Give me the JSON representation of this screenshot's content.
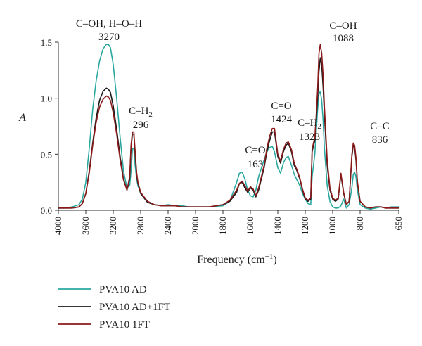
{
  "chart_data": {
    "type": "line",
    "xlabel_main": "Frequency (cm",
    "xlabel_sup": "−1",
    "xlabel_end": ")",
    "ylabel": "A",
    "xlim": [
      4000,
      650
    ],
    "ylim": [
      0,
      1.5
    ],
    "x_reversed": true,
    "grid": false,
    "legend_position": "below",
    "xticks": [
      4000,
      3600,
      3200,
      2800,
      2400,
      2000,
      1800,
      1600,
      1400,
      1200,
      1000,
      800,
      650
    ],
    "yticks": [
      0.0,
      0.5,
      1.0,
      1.5
    ],
    "ytick_labels": [
      "0.0",
      "0.5",
      "1.0",
      "1.5"
    ],
    "annotations": [
      {
        "line1": "C–OH, H–O–H",
        "line2": "3270",
        "x": 3270
      },
      {
        "line1": "C–H",
        "sub": "2",
        "line2": "296",
        "x": 2880
      },
      {
        "line1": "C=O",
        "line2": "163",
        "x": 1650
      },
      {
        "line1": "C=O",
        "line2": "1424",
        "x": 1424
      },
      {
        "line1": "C–H",
        "sub": "2",
        "line2": "1323",
        "x": 1323
      },
      {
        "line1": "C–OH",
        "line2": "1088",
        "x": 1088
      },
      {
        "line1": "C–C",
        "line2": "836",
        "x": 836
      }
    ],
    "series": [
      {
        "name": "PVA10 AD",
        "color": "#2aa8a0",
        "x": [
          4000,
          3900,
          3800,
          3700,
          3650,
          3600,
          3550,
          3500,
          3450,
          3400,
          3350,
          3300,
          3270,
          3240,
          3200,
          3150,
          3100,
          3050,
          3000,
          2960,
          2940,
          2920,
          2900,
          2880,
          2860,
          2840,
          2800,
          2700,
          2600,
          2500,
          2400,
          2300,
          2200,
          2100,
          2000,
          1900,
          1800,
          1750,
          1700,
          1680,
          1660,
          1640,
          1620,
          1600,
          1580,
          1560,
          1540,
          1500,
          1480,
          1460,
          1440,
          1424,
          1400,
          1380,
          1360,
          1340,
          1323,
          1300,
          1280,
          1260,
          1240,
          1220,
          1200,
          1180,
          1160,
          1150,
          1140,
          1130,
          1120,
          1110,
          1100,
          1090,
          1080,
          1070,
          1060,
          1040,
          1020,
          1000,
          980,
          960,
          940,
          920,
          900,
          880,
          860,
          850,
          840,
          830,
          820,
          800,
          780,
          760,
          740,
          720,
          700,
          680,
          650
        ],
        "y": [
          0.02,
          0.02,
          0.03,
          0.05,
          0.1,
          0.25,
          0.55,
          0.9,
          1.15,
          1.33,
          1.44,
          1.48,
          1.48,
          1.45,
          1.3,
          1.0,
          0.65,
          0.35,
          0.2,
          0.22,
          0.35,
          0.55,
          0.55,
          0.4,
          0.28,
          0.22,
          0.15,
          0.07,
          0.05,
          0.04,
          0.05,
          0.04,
          0.04,
          0.03,
          0.03,
          0.03,
          0.04,
          0.08,
          0.25,
          0.33,
          0.34,
          0.28,
          0.18,
          0.13,
          0.12,
          0.18,
          0.3,
          0.45,
          0.52,
          0.56,
          0.57,
          0.52,
          0.38,
          0.33,
          0.42,
          0.47,
          0.48,
          0.4,
          0.32,
          0.27,
          0.22,
          0.15,
          0.1,
          0.06,
          0.05,
          0.3,
          0.4,
          0.5,
          0.7,
          0.9,
          1.04,
          1.06,
          0.98,
          0.8,
          0.55,
          0.22,
          0.08,
          0.03,
          0.02,
          0.02,
          0.04,
          0.1,
          0.02,
          0.05,
          0.2,
          0.32,
          0.34,
          0.3,
          0.18,
          0.05,
          0.02,
          0.01,
          0.02,
          0.03,
          0.02,
          0.03,
          0.03
        ]
      },
      {
        "name": "PVA10 AD+1FT",
        "color": "#1a1a1a",
        "x": [
          4000,
          3900,
          3800,
          3700,
          3650,
          3600,
          3550,
          3500,
          3450,
          3400,
          3350,
          3300,
          3270,
          3240,
          3200,
          3150,
          3100,
          3050,
          3000,
          2960,
          2940,
          2920,
          2900,
          2880,
          2860,
          2840,
          2800,
          2700,
          2600,
          2500,
          2400,
          2300,
          2200,
          2100,
          2000,
          1900,
          1800,
          1750,
          1700,
          1680,
          1660,
          1640,
          1620,
          1600,
          1580,
          1560,
          1540,
          1500,
          1480,
          1460,
          1440,
          1424,
          1400,
          1380,
          1360,
          1340,
          1323,
          1300,
          1280,
          1260,
          1240,
          1220,
          1200,
          1180,
          1160,
          1150,
          1140,
          1130,
          1120,
          1110,
          1100,
          1090,
          1080,
          1070,
          1060,
          1040,
          1020,
          1000,
          980,
          960,
          940,
          920,
          900,
          880,
          860,
          850,
          840,
          830,
          820,
          800,
          780,
          760,
          740,
          720,
          700,
          680,
          650
        ],
        "y": [
          0.02,
          0.02,
          0.02,
          0.03,
          0.06,
          0.15,
          0.35,
          0.6,
          0.82,
          0.98,
          1.06,
          1.09,
          1.08,
          1.05,
          0.93,
          0.72,
          0.48,
          0.28,
          0.18,
          0.28,
          0.55,
          0.68,
          0.68,
          0.5,
          0.32,
          0.24,
          0.15,
          0.07,
          0.05,
          0.04,
          0.04,
          0.04,
          0.03,
          0.03,
          0.03,
          0.03,
          0.05,
          0.08,
          0.16,
          0.24,
          0.25,
          0.2,
          0.16,
          0.2,
          0.18,
          0.12,
          0.18,
          0.38,
          0.52,
          0.62,
          0.7,
          0.7,
          0.48,
          0.42,
          0.52,
          0.58,
          0.6,
          0.52,
          0.4,
          0.35,
          0.28,
          0.18,
          0.1,
          0.08,
          0.1,
          0.52,
          0.58,
          0.62,
          0.8,
          1.0,
          1.24,
          1.36,
          1.3,
          1.1,
          0.85,
          0.4,
          0.18,
          0.1,
          0.08,
          0.1,
          0.32,
          0.15,
          0.05,
          0.08,
          0.48,
          0.58,
          0.56,
          0.45,
          0.25,
          0.08,
          0.03,
          0.02,
          0.03,
          0.03,
          0.02,
          0.02,
          0.02
        ]
      },
      {
        "name": "PVA10 1FT",
        "color": "#8b1a1a",
        "x": [
          4000,
          3900,
          3800,
          3700,
          3650,
          3600,
          3550,
          3500,
          3450,
          3400,
          3350,
          3300,
          3270,
          3240,
          3200,
          3150,
          3100,
          3050,
          3000,
          2960,
          2940,
          2920,
          2900,
          2880,
          2860,
          2840,
          2800,
          2700,
          2600,
          2500,
          2400,
          2300,
          2200,
          2100,
          2000,
          1900,
          1800,
          1750,
          1700,
          1680,
          1660,
          1640,
          1620,
          1600,
          1580,
          1560,
          1540,
          1500,
          1480,
          1460,
          1440,
          1424,
          1400,
          1380,
          1360,
          1340,
          1323,
          1300,
          1280,
          1260,
          1240,
          1220,
          1200,
          1180,
          1160,
          1150,
          1140,
          1130,
          1120,
          1110,
          1100,
          1090,
          1080,
          1070,
          1060,
          1040,
          1020,
          1000,
          980,
          960,
          940,
          920,
          900,
          880,
          860,
          850,
          840,
          830,
          820,
          800,
          780,
          760,
          740,
          720,
          700,
          680,
          650
        ],
        "y": [
          0.02,
          0.02,
          0.02,
          0.03,
          0.06,
          0.15,
          0.33,
          0.58,
          0.78,
          0.92,
          0.99,
          1.02,
          1.01,
          0.98,
          0.87,
          0.68,
          0.45,
          0.27,
          0.18,
          0.3,
          0.58,
          0.7,
          0.7,
          0.52,
          0.34,
          0.25,
          0.16,
          0.08,
          0.05,
          0.04,
          0.04,
          0.04,
          0.03,
          0.03,
          0.03,
          0.03,
          0.05,
          0.09,
          0.18,
          0.24,
          0.26,
          0.22,
          0.17,
          0.21,
          0.19,
          0.13,
          0.2,
          0.4,
          0.55,
          0.66,
          0.73,
          0.73,
          0.5,
          0.44,
          0.54,
          0.6,
          0.61,
          0.54,
          0.42,
          0.36,
          0.29,
          0.19,
          0.11,
          0.09,
          0.11,
          0.55,
          0.6,
          0.65,
          0.85,
          1.08,
          1.4,
          1.48,
          1.4,
          1.2,
          0.92,
          0.45,
          0.2,
          0.11,
          0.09,
          0.11,
          0.33,
          0.16,
          0.05,
          0.08,
          0.5,
          0.6,
          0.58,
          0.47,
          0.26,
          0.08,
          0.03,
          0.02,
          0.03,
          0.03,
          0.02,
          0.02,
          0.02
        ]
      }
    ]
  }
}
